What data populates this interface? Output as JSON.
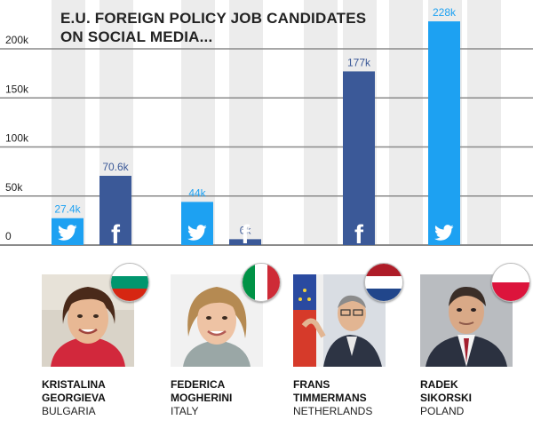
{
  "title_line1": "E.U. FOREIGN POLICY JOB CANDIDATES",
  "title_line2": "ON SOCIAL MEDIA...",
  "chart_data": {
    "type": "bar",
    "categories": [
      "KRISTALINA GEORGIEVA",
      "FEDERICA MOGHERINI",
      "FRANS TIMMERMANS",
      "RADEK SIKORSKI"
    ],
    "series": [
      {
        "platform": "twitter",
        "values": [
          27.4,
          44,
          null,
          228
        ]
      },
      {
        "platform": "facebook",
        "values": [
          70.6,
          6,
          177,
          null
        ]
      }
    ],
    "value_labels": {
      "twitter": [
        "27.4k",
        "44k",
        "",
        "228k"
      ],
      "facebook": [
        "70.6k",
        "6k",
        "177k",
        ""
      ]
    },
    "y_ticks": [
      0,
      50,
      100,
      150,
      200
    ],
    "y_tick_labels": [
      "0",
      "50k",
      "100k",
      "150k",
      "200k"
    ],
    "ylim": [
      0,
      230
    ],
    "grid": true,
    "colors": {
      "twitter": "#1da1f2",
      "facebook": "#3b5998",
      "stripe": "#ececec",
      "grid": "#8a8a8a"
    }
  },
  "candidates": [
    {
      "first": "KRISTALINA",
      "last": "GEORGIEVA",
      "country": "BULGARIA",
      "flag": "bulgaria-flag"
    },
    {
      "first": "FEDERICA",
      "last": "MOGHERINI",
      "country": "ITALY",
      "flag": "italy-flag"
    },
    {
      "first": "FRANS",
      "last": "TIMMERMANS",
      "country": "NETHERLANDS",
      "flag": "netherlands-flag"
    },
    {
      "first": "RADEK",
      "last": "SIKORSKI",
      "country": "POLAND",
      "flag": "poland-flag"
    }
  ]
}
